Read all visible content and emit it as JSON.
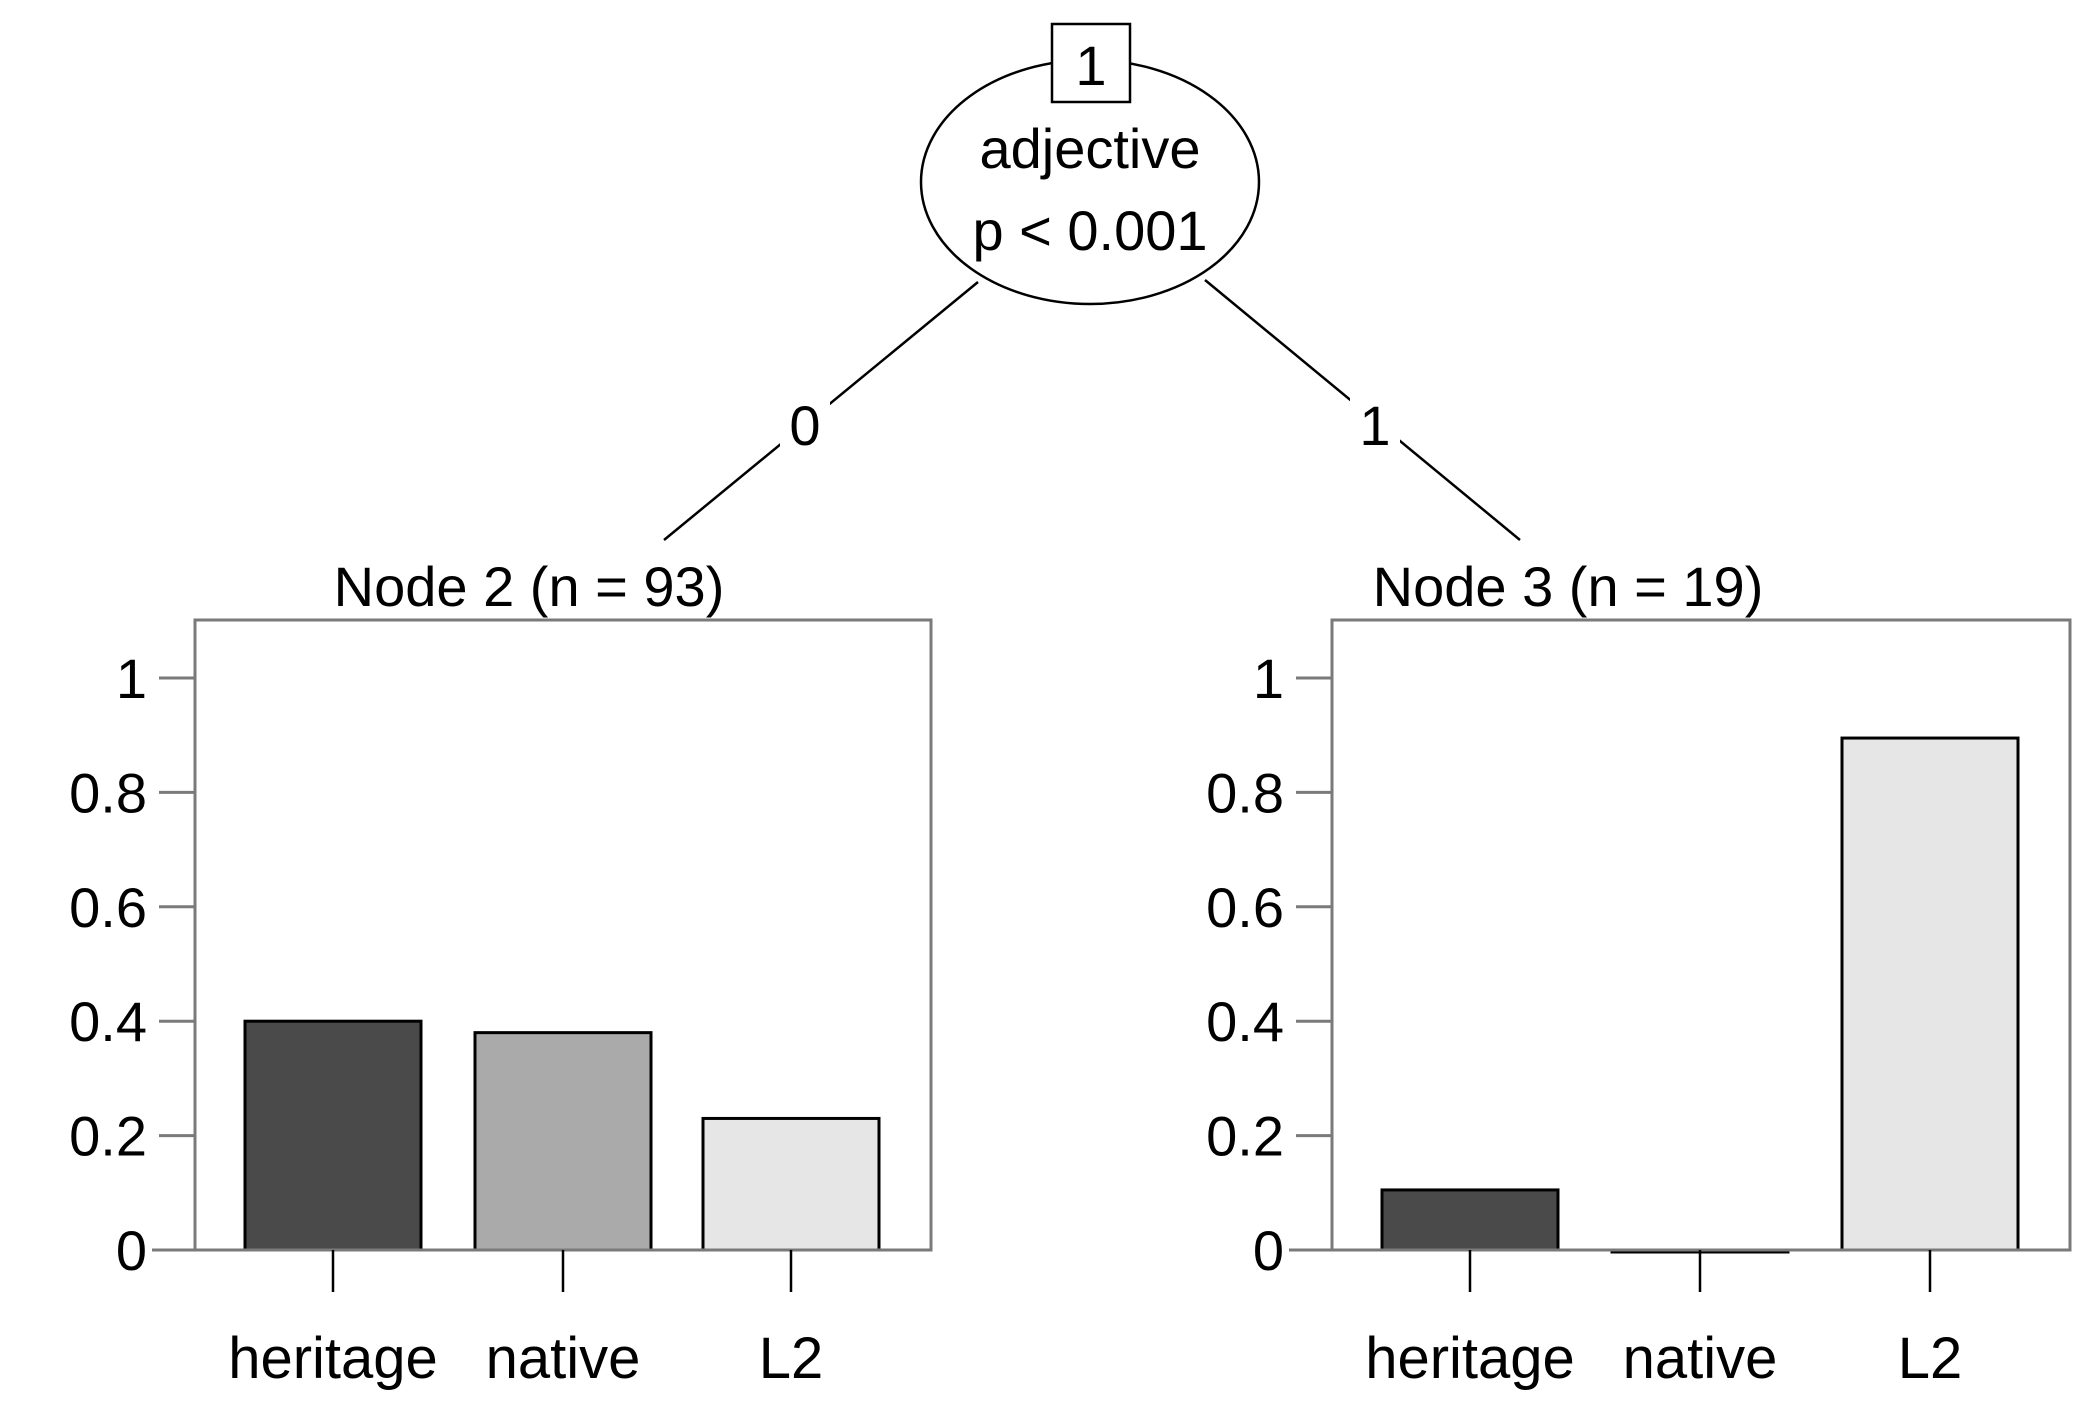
{
  "chart_data": {
    "type": "bar",
    "tree": {
      "root": {
        "id": "1",
        "variable": "adjective",
        "p_value": "p < 0.001",
        "branches": [
          "0",
          "1"
        ]
      }
    },
    "panels": [
      {
        "node_label": "Node 2 (n = 93)",
        "categories": [
          "heritage",
          "native",
          "L2"
        ],
        "values": [
          0.4,
          0.38,
          0.23
        ],
        "bar_colors": [
          "#4a4a4a",
          "#aaaaaa",
          "#e6e6e6"
        ],
        "ylim": [
          0,
          1.1
        ],
        "yticks": [
          0,
          0.2,
          0.4,
          0.6,
          0.8,
          1
        ],
        "ytick_labels": [
          "0",
          "0.2",
          "0.4",
          "0.6",
          "0.8",
          "1"
        ]
      },
      {
        "node_label": "Node 3 (n = 19)",
        "categories": [
          "heritage",
          "native",
          "L2"
        ],
        "values": [
          0.105,
          0.0,
          0.895
        ],
        "bar_colors": [
          "#4a4a4a",
          "#aaaaaa",
          "#e6e6e6"
        ],
        "ylim": [
          0,
          1.1
        ],
        "yticks": [
          0,
          0.2,
          0.4,
          0.6,
          0.8,
          1
        ],
        "ytick_labels": [
          "0",
          "0.2",
          "0.4",
          "0.6",
          "0.8",
          "1"
        ]
      }
    ]
  }
}
